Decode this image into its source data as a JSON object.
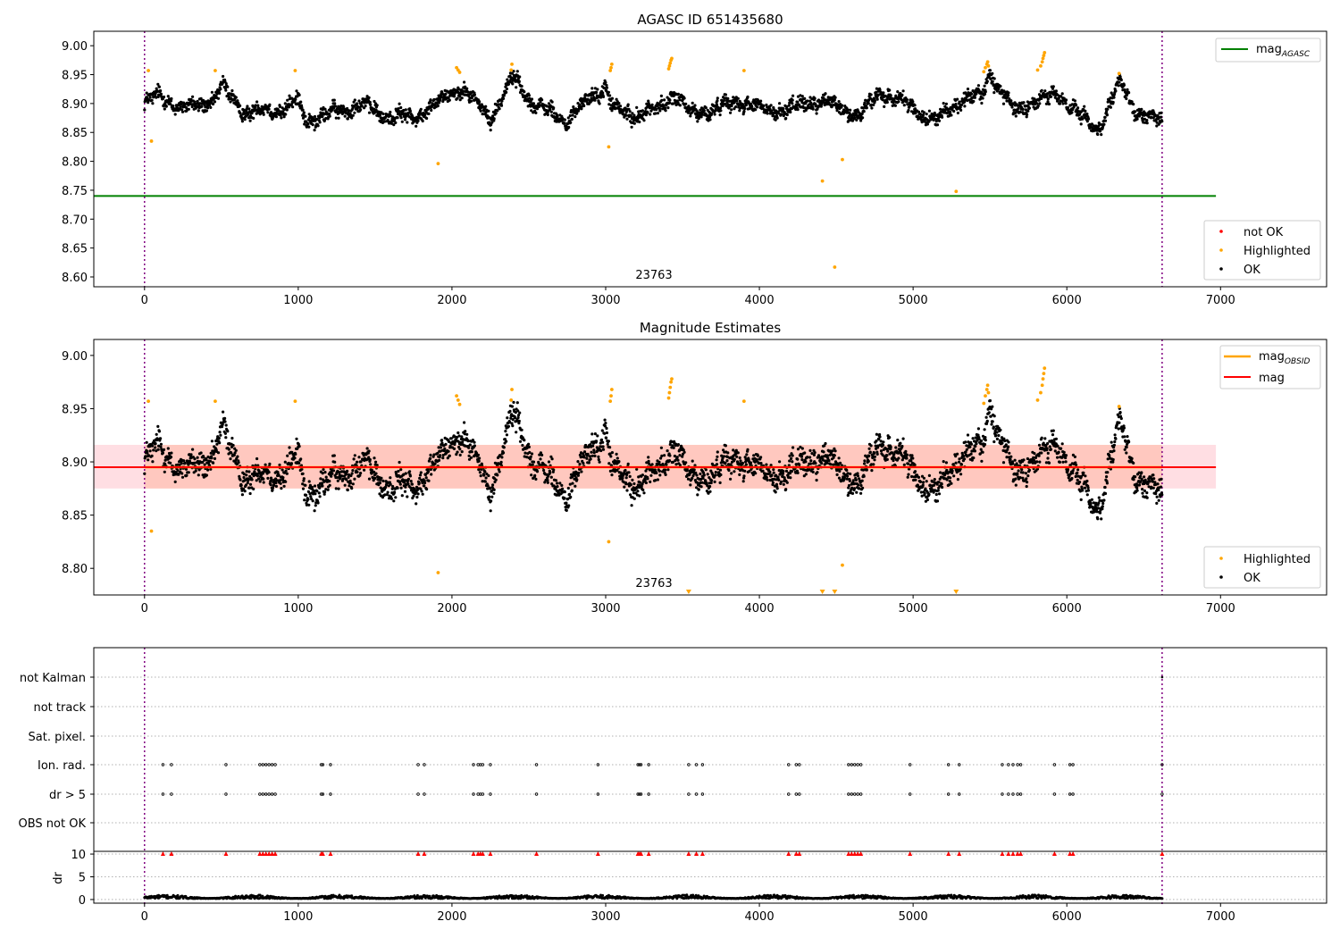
{
  "colors": {
    "ok": "#000000",
    "highlighted": "#ffa500",
    "not_ok": "#ff0000",
    "mag_agasc": "#008000",
    "mag_obsid": "#ffa500",
    "mag": "#ff0000",
    "band_fill": "#ffb6c1",
    "obs_boundary": "#800080",
    "grid": "#b0b0b0",
    "dr_flag_marker": "#ff0000"
  },
  "chart_data": [
    {
      "type": "scatter",
      "title": "AGASC ID 651435680",
      "xlim": [
        -330,
        7690
      ],
      "ylim": [
        8.583,
        9.025
      ],
      "xticks": [
        "0",
        "1000",
        "2000",
        "3000",
        "4000",
        "5000",
        "6000",
        "7000"
      ],
      "yticks": [
        "8.60",
        "8.65",
        "8.70",
        "8.75",
        "8.80",
        "8.85",
        "8.90",
        "8.95",
        "9.00"
      ],
      "obs_boundaries": [
        0,
        6620
      ],
      "obsid_label": {
        "text": "23763",
        "x": 3300,
        "y": 8.597
      },
      "line_legend": [
        {
          "name": "mag",
          "sub": "AGASC",
          "color": "#008000"
        }
      ],
      "point_legend": [
        {
          "name": "not OK",
          "color": "#ff0000"
        },
        {
          "name": "Highlighted",
          "color": "#ffa500"
        },
        {
          "name": "OK",
          "color": "#000000"
        }
      ],
      "mag_agasc": {
        "value": 8.74,
        "x_range": [
          -330,
          6970
        ]
      },
      "series_ok_keypoints": {
        "x": [
          0,
          100,
          250,
          450,
          500,
          650,
          900,
          1000,
          1050,
          1250,
          1400,
          1550,
          1750,
          1900,
          2050,
          2250,
          2400,
          2550,
          2750,
          2900,
          3000,
          3050,
          3150,
          3350,
          3450,
          3550,
          3750,
          3900,
          4050,
          4250,
          4400,
          4500,
          4650,
          4800,
          4950,
          5150,
          5300,
          5450,
          5500,
          5650,
          5800,
          5950,
          6100,
          6200,
          6350,
          6450,
          6620
        ],
        "y": [
          8.9,
          8.915,
          8.89,
          8.905,
          8.93,
          8.885,
          8.89,
          8.905,
          8.87,
          8.885,
          8.9,
          8.88,
          8.875,
          8.9,
          8.93,
          8.875,
          8.945,
          8.895,
          8.87,
          8.91,
          8.93,
          8.89,
          8.88,
          8.89,
          8.92,
          8.88,
          8.895,
          8.905,
          8.885,
          8.895,
          8.905,
          8.895,
          8.88,
          8.92,
          8.9,
          8.87,
          8.905,
          8.915,
          8.955,
          8.885,
          8.905,
          8.915,
          8.875,
          8.855,
          8.935,
          8.885,
          8.87
        ],
        "noise": 0.012
      },
      "series_highlighted": {
        "x": [
          25,
          45,
          460,
          980,
          1910,
          2030,
          2040,
          2050,
          2385,
          2390,
          3020,
          3030,
          3035,
          3040,
          3410,
          3415,
          3420,
          3425,
          3430,
          3900,
          4410,
          4490,
          4540,
          5280,
          5460,
          5470,
          5480,
          5485,
          5490,
          5810,
          5830,
          5840,
          5845,
          5850,
          5855,
          6340
        ],
        "y": [
          8.957,
          8.835,
          8.957,
          8.957,
          8.796,
          8.962,
          8.958,
          8.954,
          8.958,
          8.968,
          8.825,
          8.957,
          8.962,
          8.968,
          8.96,
          8.965,
          8.97,
          8.975,
          8.978,
          8.957,
          8.766,
          8.617,
          8.803,
          8.748,
          8.955,
          8.962,
          8.968,
          8.972,
          8.965,
          8.958,
          8.965,
          8.972,
          8.978,
          8.983,
          8.988,
          8.952
        ]
      }
    },
    {
      "type": "scatter",
      "title": "Magnitude Estimates",
      "xlim": [
        -330,
        7690
      ],
      "ylim": [
        8.775,
        9.015
      ],
      "xticks": [
        "0",
        "1000",
        "2000",
        "3000",
        "4000",
        "5000",
        "6000",
        "7000"
      ],
      "yticks": [
        "8.80",
        "8.85",
        "8.90",
        "8.95",
        "9.00"
      ],
      "obs_boundaries": [
        0,
        6620
      ],
      "obsid_label": {
        "text": "23763",
        "x": 3300,
        "y": 8.781
      },
      "line_legend": [
        {
          "name": "mag",
          "sub": "OBSID",
          "color": "#ffa500"
        },
        {
          "name": "mag",
          "sub": "",
          "color": "#ff0000"
        }
      ],
      "point_legend": [
        {
          "name": "Highlighted",
          "color": "#ffa500"
        },
        {
          "name": "OK",
          "color": "#000000"
        }
      ],
      "mag": {
        "value": 8.895,
        "band": [
          8.875,
          8.916
        ],
        "x_range": [
          -330,
          6970
        ]
      },
      "mag_obsid": {
        "value": 8.895,
        "band": [
          8.875,
          8.916
        ],
        "x_range": [
          0,
          6620
        ]
      },
      "off_scale_markers_x": [
        3540,
        4410,
        4490,
        5280
      ],
      "series_highlighted": {
        "x": [
          25,
          45,
          460,
          980,
          1910,
          2030,
          2040,
          2050,
          2385,
          2390,
          3020,
          3030,
          3035,
          3040,
          3410,
          3415,
          3420,
          3425,
          3430,
          3900,
          4540,
          5460,
          5470,
          5480,
          5485,
          5490,
          5810,
          5830,
          5840,
          5845,
          5850,
          5855,
          6340
        ],
        "y": [
          8.957,
          8.835,
          8.957,
          8.957,
          8.796,
          8.962,
          8.958,
          8.954,
          8.958,
          8.968,
          8.825,
          8.957,
          8.962,
          8.968,
          8.96,
          8.965,
          8.97,
          8.975,
          8.978,
          8.957,
          8.803,
          8.955,
          8.962,
          8.968,
          8.972,
          8.965,
          8.958,
          8.965,
          8.972,
          8.978,
          8.983,
          8.988,
          8.952
        ]
      }
    },
    {
      "type": "scatter",
      "title": "",
      "xlim": [
        -330,
        7690
      ],
      "xticks": [
        "0",
        "1000",
        "2000",
        "3000",
        "4000",
        "5000",
        "6000",
        "7000"
      ],
      "flag_rows": [
        "not Kalman",
        "not track",
        "Sat. pixel.",
        "Ion. rad.",
        "dr > 5",
        "OBS not OK"
      ],
      "flag_events_x": [
        120,
        175,
        530,
        750,
        770,
        790,
        810,
        830,
        850,
        1150,
        1160,
        1210,
        1780,
        1820,
        2140,
        2170,
        2185,
        2200,
        2250,
        2550,
        2950,
        3210,
        3220,
        3230,
        3280,
        3540,
        3590,
        3630,
        4190,
        4240,
        4260,
        4580,
        4600,
        4620,
        4640,
        4660,
        4980,
        5230,
        5300,
        5580,
        5620,
        5650,
        5680,
        5700,
        5920,
        6020,
        6040,
        6620
      ],
      "dr_ylabel": "dr",
      "dr_yticks": [
        "0",
        "5",
        "10"
      ],
      "dr_ylim": [
        -0.8,
        10.6
      ],
      "dr_typical": [
        0.2,
        1.1
      ]
    }
  ]
}
